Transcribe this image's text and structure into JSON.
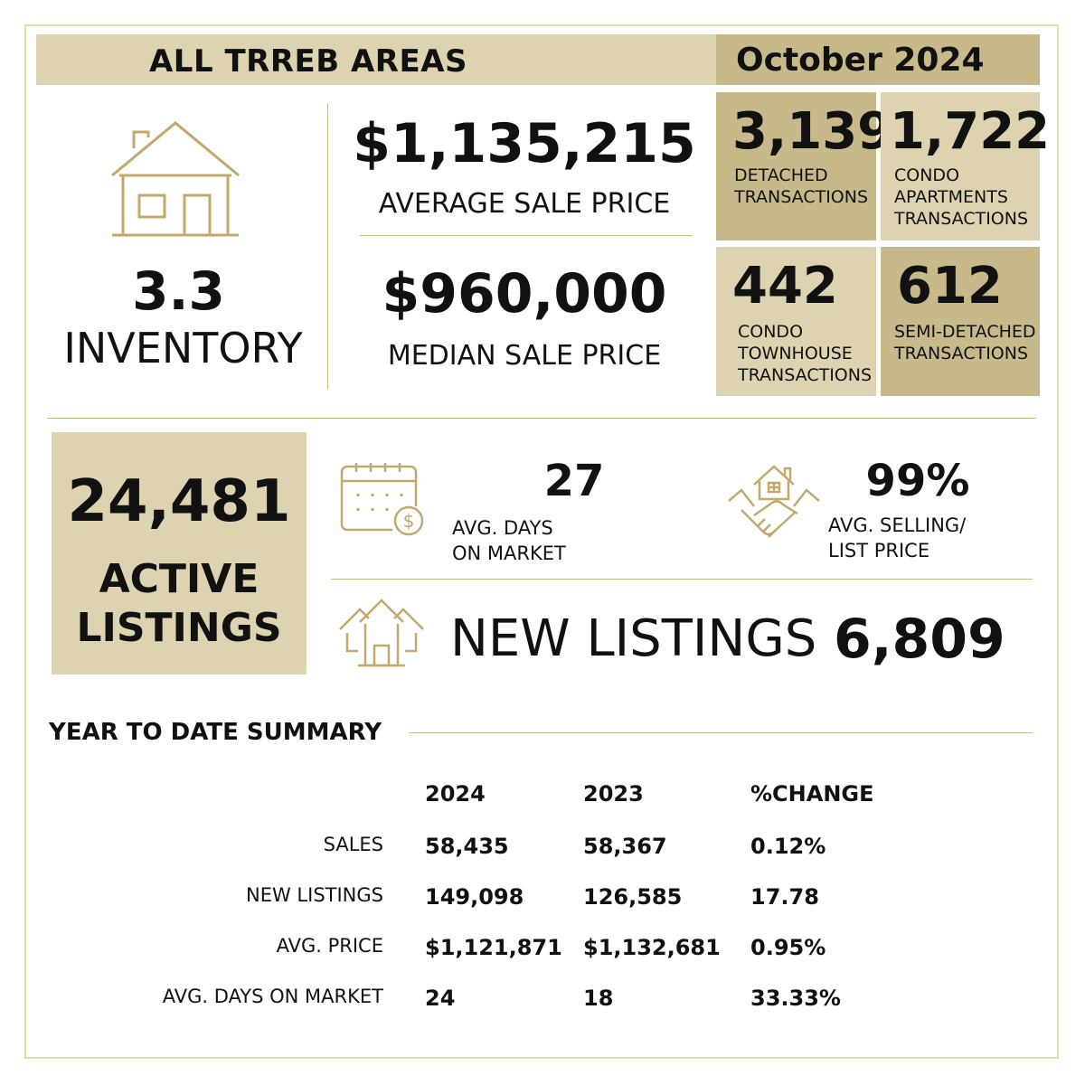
{
  "header": {
    "title": "ALL TRREB AREAS",
    "date": "October 2024"
  },
  "inventory": {
    "value": "3.3",
    "label": "INVENTORY",
    "icon": "house-icon"
  },
  "average_price": {
    "value": "$1,135,215",
    "label": "AVERAGE SALE PRICE"
  },
  "median_price": {
    "value": "$960,000",
    "label": "MEDIAN SALE PRICE"
  },
  "transactions": [
    {
      "value": "3,139",
      "label": "DETACHED\nTRANSACTIONS"
    },
    {
      "value": "1,722",
      "label": "CONDO\nAPARTMENTS\nTRANSACTIONS"
    },
    {
      "value": "442",
      "label": "CONDO\nTOWNHOUSE\nTRANSACTIONS"
    },
    {
      "value": "612",
      "label": "SEMI-DETACHED\nTRANSACTIONS"
    }
  ],
  "active_listings": {
    "value": "24,481",
    "label": "ACTIVE\nLISTINGS"
  },
  "days_on_market": {
    "value": "27",
    "label": "AVG. DAYS\nON MARKET",
    "icon": "calendar-dollar-icon"
  },
  "selling_list": {
    "value": "99%",
    "label": "AVG. SELLING/\nLIST PRICE",
    "icon": "handshake-house-icon"
  },
  "new_listings": {
    "label": "NEW LISTINGS",
    "value": "6,809",
    "icon": "houses-icon"
  },
  "ytd": {
    "title": "YEAR TO DATE SUMMARY",
    "headers": [
      "2024",
      "2023",
      "%CHANGE"
    ],
    "rows": [
      {
        "label": "SALES",
        "v2024": "58,435",
        "v2023": "58,367",
        "change": "0.12%"
      },
      {
        "label": "NEW LISTINGS",
        "v2024": "149,098",
        "v2023": "126,585",
        "change": "17.78"
      },
      {
        "label": "AVG. PRICE",
        "v2024": "$1,121,871",
        "v2023": "$1,132,681",
        "change": "0.95%"
      },
      {
        "label": "AVG. DAYS ON MARKET",
        "v2024": "24",
        "v2023": "18",
        "change": "33.33%"
      }
    ]
  },
  "colors": {
    "gold_dark": "#c7b98a",
    "gold_light": "#ddd3b0",
    "icon_gold": "#c3a96b",
    "border": "#e6dcae"
  }
}
